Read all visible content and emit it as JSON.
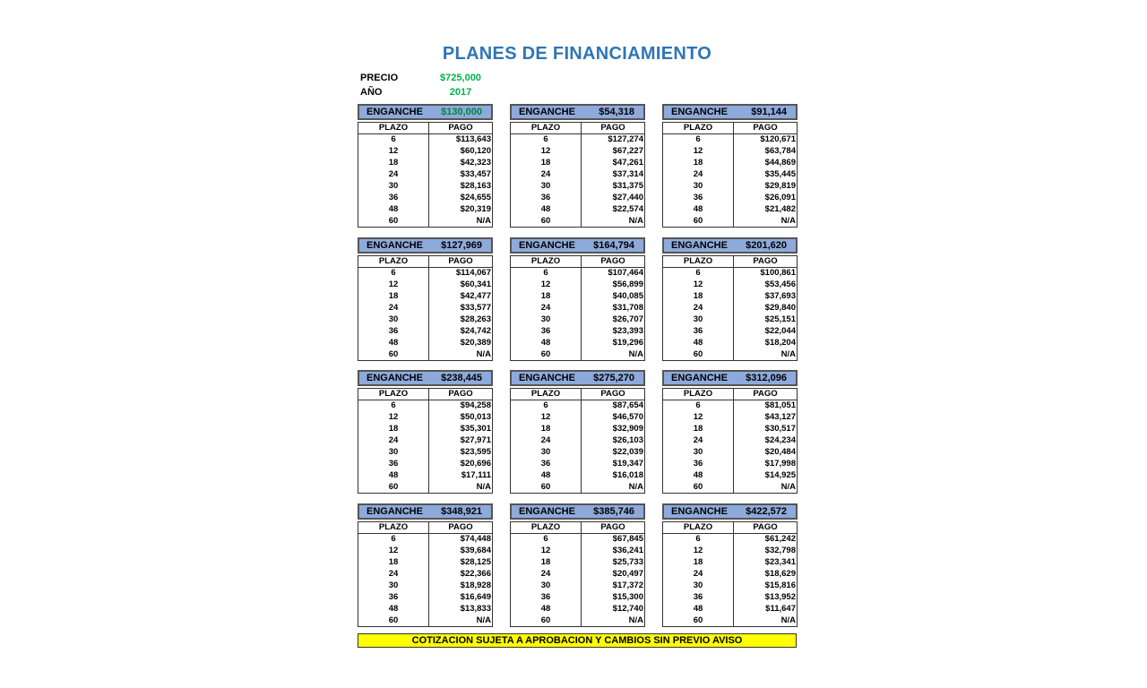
{
  "title": "PLANES DE FINANCIAMIENTO",
  "precio_label": "PRECIO",
  "precio": "$725,000",
  "anio_label": "AÑO",
  "anio": "2017",
  "colors": {
    "title": "#2e75b6",
    "value_green": "#00b050",
    "header_fill": "#8eaadb",
    "footer_fill": "#ffff00"
  },
  "enganche_label": "ENGANCHE",
  "col_plazo": "PLAZO",
  "col_pago": "PAGO",
  "plazos": [
    "6",
    "12",
    "18",
    "24",
    "30",
    "36",
    "48",
    "60"
  ],
  "plans": [
    {
      "enganche": "$130,000",
      "highlight": true,
      "pagos": [
        "$113,643",
        "$60,120",
        "$42,323",
        "$33,457",
        "$28,163",
        "$24,655",
        "$20,319",
        "N/A"
      ]
    },
    {
      "enganche": "$54,318",
      "pagos": [
        "$127,274",
        "$67,227",
        "$47,261",
        "$37,314",
        "$31,375",
        "$27,440",
        "$22,574",
        "N/A"
      ]
    },
    {
      "enganche": "$91,144",
      "pagos": [
        "$120,671",
        "$63,784",
        "$44,869",
        "$35,445",
        "$29,819",
        "$26,091",
        "$21,482",
        "N/A"
      ]
    },
    {
      "enganche": "$127,969",
      "pagos": [
        "$114,067",
        "$60,341",
        "$42,477",
        "$33,577",
        "$28,263",
        "$24,742",
        "$20,389",
        "N/A"
      ]
    },
    {
      "enganche": "$164,794",
      "pagos": [
        "$107,464",
        "$56,899",
        "$40,085",
        "$31,708",
        "$26,707",
        "$23,393",
        "$19,296",
        "N/A"
      ]
    },
    {
      "enganche": "$201,620",
      "pagos": [
        "$100,861",
        "$53,456",
        "$37,693",
        "$29,840",
        "$25,151",
        "$22,044",
        "$18,204",
        "N/A"
      ]
    },
    {
      "enganche": "$238,445",
      "pagos": [
        "$94,258",
        "$50,013",
        "$35,301",
        "$27,971",
        "$23,595",
        "$20,696",
        "$17,111",
        "N/A"
      ]
    },
    {
      "enganche": "$275,270",
      "pagos": [
        "$87,654",
        "$46,570",
        "$32,909",
        "$26,103",
        "$22,039",
        "$19,347",
        "$16,018",
        "N/A"
      ]
    },
    {
      "enganche": "$312,096",
      "pagos": [
        "$81,051",
        "$43,127",
        "$30,517",
        "$24,234",
        "$20,484",
        "$17,998",
        "$14,925",
        "N/A"
      ]
    },
    {
      "enganche": "$348,921",
      "pagos": [
        "$74,448",
        "$39,684",
        "$28,125",
        "$22,366",
        "$18,928",
        "$16,649",
        "$13,833",
        "N/A"
      ]
    },
    {
      "enganche": "$385,746",
      "pagos": [
        "$67,845",
        "$36,241",
        "$25,733",
        "$20,497",
        "$17,372",
        "$15,300",
        "$12,740",
        "N/A"
      ]
    },
    {
      "enganche": "$422,572",
      "pagos": [
        "$61,242",
        "$32,798",
        "$23,341",
        "$18,629",
        "$15,816",
        "$13,952",
        "$11,647",
        "N/A"
      ]
    }
  ],
  "footer": "COTIZACION SUJETA A APROBACION Y CAMBIOS SIN PREVIO AVISO"
}
